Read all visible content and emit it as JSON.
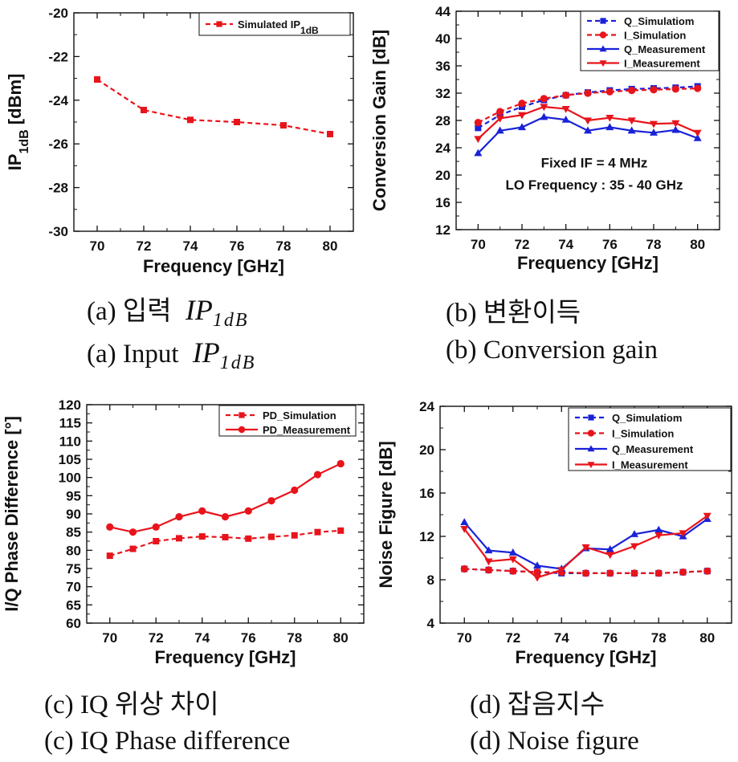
{
  "captions": {
    "a_korean_prefix": "(a) 입력",
    "a_english_prefix": "(a) Input",
    "ip_base": "IP",
    "ip_sub": "1dB",
    "b_korean": "(b) 변환이득",
    "b_english": "(b) Conversion gain",
    "c_korean": "(c) IQ 위상 차이",
    "c_english": "(c) IQ Phase difference",
    "d_korean": "(d) 잡음지수",
    "d_english": "(d) Noise figure"
  },
  "chart_data": [
    {
      "id": "a",
      "type": "line",
      "xlabel": "Frequency [GHz]",
      "ylabel": "IP1dB [dBm]",
      "xlim": [
        69,
        81
      ],
      "ylim": [
        -30,
        -20
      ],
      "xticks": [
        70,
        72,
        74,
        76,
        78,
        80
      ],
      "yticks": [
        -30,
        -28,
        -26,
        -24,
        -22,
        -20
      ],
      "legend_position": "top-right",
      "series": [
        {
          "name": "Simulated IP1dB",
          "color": "#e8141b",
          "dash": true,
          "marker": "square",
          "x": [
            70,
            72,
            74,
            76,
            78,
            80
          ],
          "y": [
            -23.05,
            -24.45,
            -24.9,
            -25.0,
            -25.15,
            -25.55
          ]
        }
      ]
    },
    {
      "id": "b",
      "type": "line",
      "xlabel": "Frequency [GHz]",
      "ylabel": "Conversion Gain [dB]",
      "xlim": [
        69,
        81
      ],
      "ylim": [
        12,
        44
      ],
      "xticks": [
        70,
        72,
        74,
        76,
        78,
        80
      ],
      "yticks": [
        12,
        16,
        20,
        24,
        28,
        32,
        36,
        40,
        44
      ],
      "legend_position": "top-right",
      "annotations": [
        "Fixed IF = 4 MHz",
        "LO Frequency : 35 - 40 GHz"
      ],
      "series": [
        {
          "name": "Q_Simulatiom",
          "color": "#1a22d8",
          "dash": true,
          "marker": "square",
          "x": [
            70,
            71,
            72,
            73,
            74,
            75,
            76,
            77,
            78,
            79,
            80
          ],
          "y": [
            26.9,
            28.8,
            30.0,
            31.0,
            31.7,
            32.1,
            32.4,
            32.6,
            32.7,
            32.8,
            33.0
          ]
        },
        {
          "name": "I_Simulation",
          "color": "#e8141b",
          "dash": true,
          "marker": "circle",
          "x": [
            70,
            71,
            72,
            73,
            74,
            75,
            76,
            77,
            78,
            79,
            80
          ],
          "y": [
            27.7,
            29.3,
            30.5,
            31.2,
            31.7,
            32.0,
            32.2,
            32.4,
            32.5,
            32.6,
            32.7
          ]
        },
        {
          "name": "Q_Measurement",
          "color": "#1a22d8",
          "dash": false,
          "marker": "triangle-up",
          "x": [
            70,
            71,
            72,
            73,
            74,
            75,
            76,
            77,
            78,
            79,
            80
          ],
          "y": [
            23.2,
            26.5,
            27.0,
            28.5,
            28.1,
            26.5,
            27.0,
            26.5,
            26.2,
            26.6,
            25.4
          ]
        },
        {
          "name": "I_Measurement",
          "color": "#e8141b",
          "dash": false,
          "marker": "triangle-down",
          "x": [
            70,
            71,
            72,
            73,
            74,
            75,
            76,
            77,
            78,
            79,
            80
          ],
          "y": [
            25.3,
            28.3,
            28.8,
            30.0,
            29.7,
            28.0,
            28.4,
            28.0,
            27.5,
            27.6,
            26.2
          ]
        }
      ]
    },
    {
      "id": "c",
      "type": "line",
      "xlabel": "Frequency [GHz]",
      "ylabel": "I/Q Phase Difference [°]",
      "xlim": [
        69,
        81
      ],
      "ylim": [
        60,
        120
      ],
      "xticks": [
        70,
        72,
        74,
        76,
        78,
        80
      ],
      "yticks": [
        60,
        65,
        70,
        75,
        80,
        85,
        90,
        95,
        100,
        105,
        110,
        115,
        120
      ],
      "legend_position": "top-right",
      "series": [
        {
          "name": "PD_Simulation",
          "color": "#e8141b",
          "dash": true,
          "marker": "square",
          "x": [
            70,
            71,
            72,
            73,
            74,
            75,
            76,
            77,
            78,
            79,
            80
          ],
          "y": [
            78.5,
            80.4,
            82.5,
            83.3,
            83.8,
            83.6,
            83.2,
            83.7,
            84.1,
            85.0,
            85.4
          ]
        },
        {
          "name": "PD_Measurement",
          "color": "#e8141b",
          "dash": false,
          "marker": "circle",
          "x": [
            70,
            71,
            72,
            73,
            74,
            75,
            76,
            77,
            78,
            79,
            80
          ],
          "y": [
            86.4,
            85.0,
            86.4,
            89.2,
            90.8,
            89.2,
            90.8,
            93.6,
            96.5,
            100.8,
            103.8
          ]
        }
      ]
    },
    {
      "id": "d",
      "type": "line",
      "xlabel": "Frequency [GHz]",
      "ylabel": "Noise Figure [dB]",
      "xlim": [
        69,
        81
      ],
      "ylim": [
        4,
        24
      ],
      "xticks": [
        70,
        72,
        74,
        76,
        78,
        80
      ],
      "yticks": [
        4,
        8,
        12,
        16,
        20,
        24
      ],
      "legend_position": "top-right",
      "series": [
        {
          "name": "Q_Simulatiom",
          "color": "#1a22d8",
          "dash": true,
          "marker": "square",
          "x": [
            70,
            71,
            72,
            73,
            74,
            75,
            76,
            77,
            78,
            79,
            80
          ],
          "y": [
            9.0,
            8.9,
            8.8,
            8.7,
            8.6,
            8.6,
            8.6,
            8.6,
            8.6,
            8.7,
            8.8
          ]
        },
        {
          "name": "I_Simulation",
          "color": "#e8141b",
          "dash": true,
          "marker": "circle",
          "x": [
            70,
            71,
            72,
            73,
            74,
            75,
            76,
            77,
            78,
            79,
            80
          ],
          "y": [
            9.0,
            8.9,
            8.8,
            8.7,
            8.7,
            8.6,
            8.6,
            8.6,
            8.6,
            8.7,
            8.8
          ]
        },
        {
          "name": "Q_Measurement",
          "color": "#1a22d8",
          "dash": false,
          "marker": "triangle-up",
          "x": [
            70,
            71,
            72,
            73,
            74,
            75,
            76,
            77,
            78,
            79,
            80
          ],
          "y": [
            13.3,
            10.7,
            10.5,
            9.3,
            9.0,
            10.9,
            10.8,
            12.2,
            12.6,
            12.0,
            13.6
          ]
        },
        {
          "name": "I_Measurement",
          "color": "#e8141b",
          "dash": false,
          "marker": "triangle-down",
          "x": [
            70,
            71,
            72,
            73,
            74,
            75,
            76,
            77,
            78,
            79,
            80
          ],
          "y": [
            12.7,
            9.7,
            9.9,
            8.2,
            8.9,
            11.0,
            10.3,
            11.1,
            12.1,
            12.3,
            13.9
          ]
        }
      ]
    }
  ]
}
